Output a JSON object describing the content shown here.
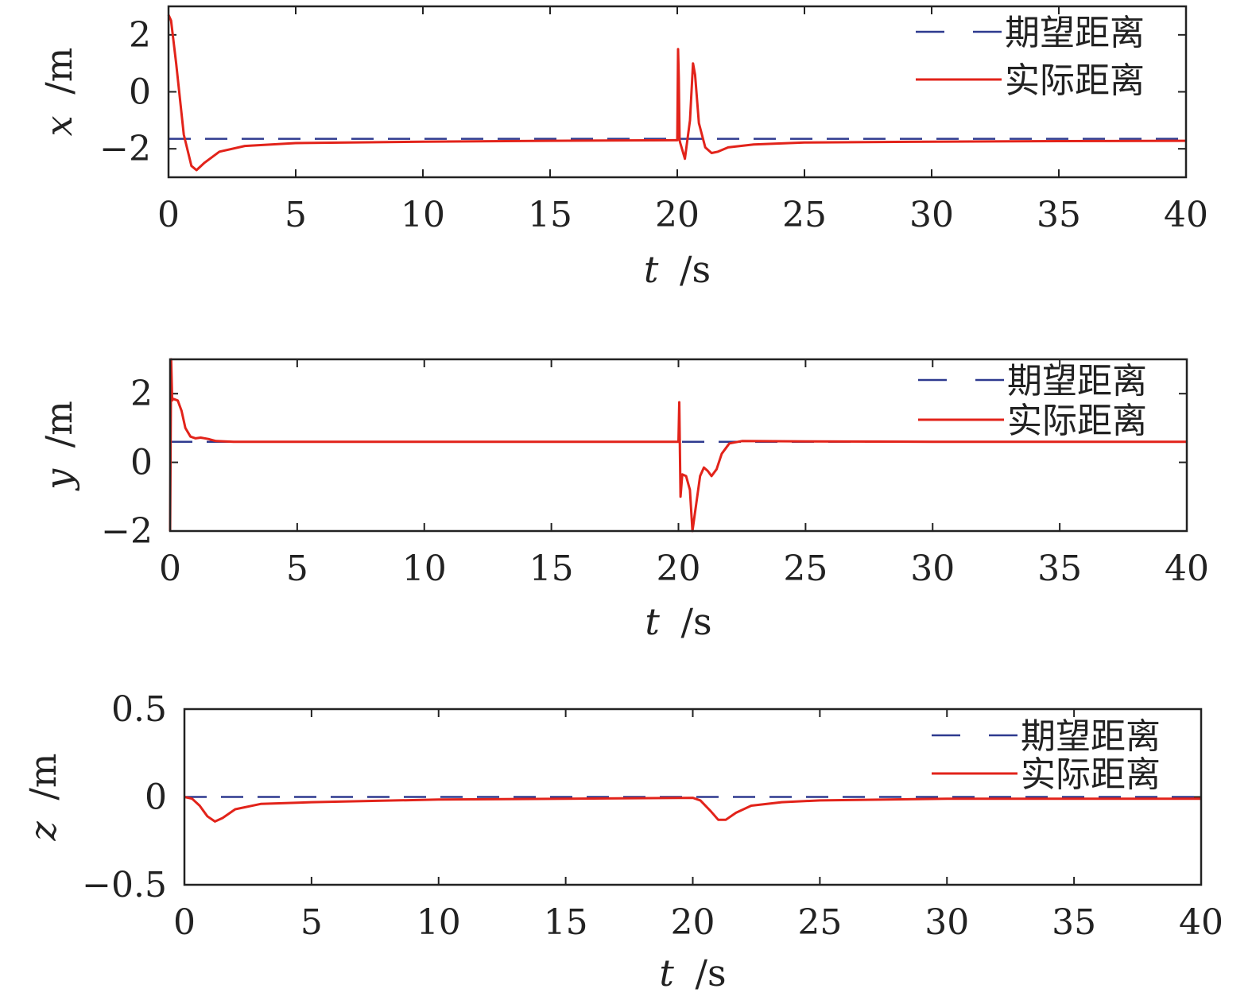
{
  "legend": {
    "desired_label": "期望距离",
    "actual_label": "实际距离",
    "placement": "top-right"
  },
  "colors": {
    "desired": "#2e3a8f",
    "actual": "#e2231a",
    "axes": "#222222"
  },
  "chart_data": [
    {
      "type": "line",
      "title": "",
      "xlabel_var": "t",
      "xlabel_unit": "/s",
      "ylabel_var": "x",
      "ylabel_unit": "/m",
      "xlim": [
        0,
        40
      ],
      "ylim": [
        -3.0,
        3.0
      ],
      "xticks": [
        0,
        5,
        10,
        15,
        20,
        25,
        30,
        35,
        40
      ],
      "yticks": [
        -2,
        0,
        2
      ],
      "ytick_labels": [
        "−2",
        "0",
        "2"
      ],
      "grid": false,
      "series": [
        {
          "name": "期望距离",
          "style": "dashed",
          "x": [
            0,
            40
          ],
          "y": [
            -1.65,
            -1.65
          ]
        },
        {
          "name": "实际距离",
          "style": "solid",
          "x": [
            0,
            0.1,
            0.3,
            0.6,
            0.9,
            1.1,
            1.4,
            2,
            3,
            5,
            10,
            15,
            19.9,
            20.0,
            20.03,
            20.06,
            20.09,
            20.12,
            20.3,
            20.5,
            20.62,
            20.7,
            20.85,
            21.1,
            21.35,
            21.6,
            22.0,
            23,
            25,
            30,
            35,
            40
          ],
          "y": [
            2.7,
            2.5,
            1.0,
            -1.5,
            -2.6,
            -2.75,
            -2.5,
            -2.1,
            -1.9,
            -1.8,
            -1.75,
            -1.72,
            -1.7,
            -1.7,
            1.5,
            0.5,
            -1.7,
            -1.8,
            -2.35,
            -1.0,
            1.0,
            0.6,
            -1.1,
            -1.95,
            -2.15,
            -2.1,
            -1.95,
            -1.85,
            -1.78,
            -1.75,
            -1.73,
            -1.72
          ]
        }
      ]
    },
    {
      "type": "line",
      "title": "",
      "xlabel_var": "t",
      "xlabel_unit": "/s",
      "ylabel_var": "y",
      "ylabel_unit": "/m",
      "xlim": [
        0,
        40
      ],
      "ylim": [
        -2.0,
        3.0
      ],
      "xticks": [
        0,
        5,
        10,
        15,
        20,
        25,
        30,
        35,
        40
      ],
      "yticks": [
        -2,
        0,
        2
      ],
      "ytick_labels": [
        "−2",
        "0",
        "2"
      ],
      "grid": false,
      "series": [
        {
          "name": "期望距离",
          "style": "dashed",
          "x": [
            0,
            40
          ],
          "y": [
            0.6,
            0.6
          ]
        },
        {
          "name": "实际距离",
          "style": "solid",
          "x": [
            0,
            0.04,
            0.08,
            0.12,
            0.3,
            0.45,
            0.6,
            0.8,
            1.0,
            1.2,
            1.5,
            1.8,
            2.5,
            5,
            10,
            15,
            19.95,
            20.0,
            20.03,
            20.08,
            20.15,
            20.3,
            20.45,
            20.55,
            20.7,
            20.85,
            21.0,
            21.15,
            21.3,
            21.5,
            21.7,
            22.0,
            22.5,
            25,
            30,
            35,
            40
          ],
          "y": [
            -2.0,
            3.0,
            1.8,
            1.85,
            1.8,
            1.5,
            1.0,
            0.75,
            0.7,
            0.72,
            0.68,
            0.62,
            0.6,
            0.6,
            0.6,
            0.6,
            0.6,
            0.6,
            1.75,
            -1.0,
            -0.35,
            -0.4,
            -0.8,
            -2.0,
            -1.2,
            -0.4,
            -0.15,
            -0.25,
            -0.4,
            -0.2,
            0.25,
            0.55,
            0.62,
            0.61,
            0.6,
            0.6,
            0.6
          ]
        }
      ]
    },
    {
      "type": "line",
      "title": "",
      "xlabel_var": "t",
      "xlabel_unit": "/s",
      "ylabel_var": "z",
      "ylabel_unit": "/m",
      "xlim": [
        0,
        40
      ],
      "ylim": [
        -0.5,
        0.5
      ],
      "xticks": [
        0,
        5,
        10,
        15,
        20,
        25,
        30,
        35,
        40
      ],
      "yticks": [
        -0.5,
        0,
        0.5
      ],
      "ytick_labels": [
        "−0.5",
        "0",
        "0.5"
      ],
      "grid": false,
      "series": [
        {
          "name": "期望距离",
          "style": "dashed",
          "x": [
            0,
            40
          ],
          "y": [
            0,
            0
          ]
        },
        {
          "name": "实际距离",
          "style": "solid",
          "x": [
            0,
            0.3,
            0.6,
            0.9,
            1.2,
            1.5,
            2,
            3,
            5,
            10,
            15,
            20,
            20.3,
            20.7,
            21.0,
            21.3,
            21.7,
            22.3,
            23.5,
            25,
            30,
            35,
            40
          ],
          "y": [
            0,
            -0.01,
            -0.05,
            -0.11,
            -0.14,
            -0.12,
            -0.07,
            -0.04,
            -0.03,
            -0.015,
            -0.01,
            -0.005,
            -0.02,
            -0.08,
            -0.13,
            -0.13,
            -0.09,
            -0.05,
            -0.03,
            -0.02,
            -0.01,
            -0.01,
            -0.01
          ]
        }
      ]
    }
  ]
}
